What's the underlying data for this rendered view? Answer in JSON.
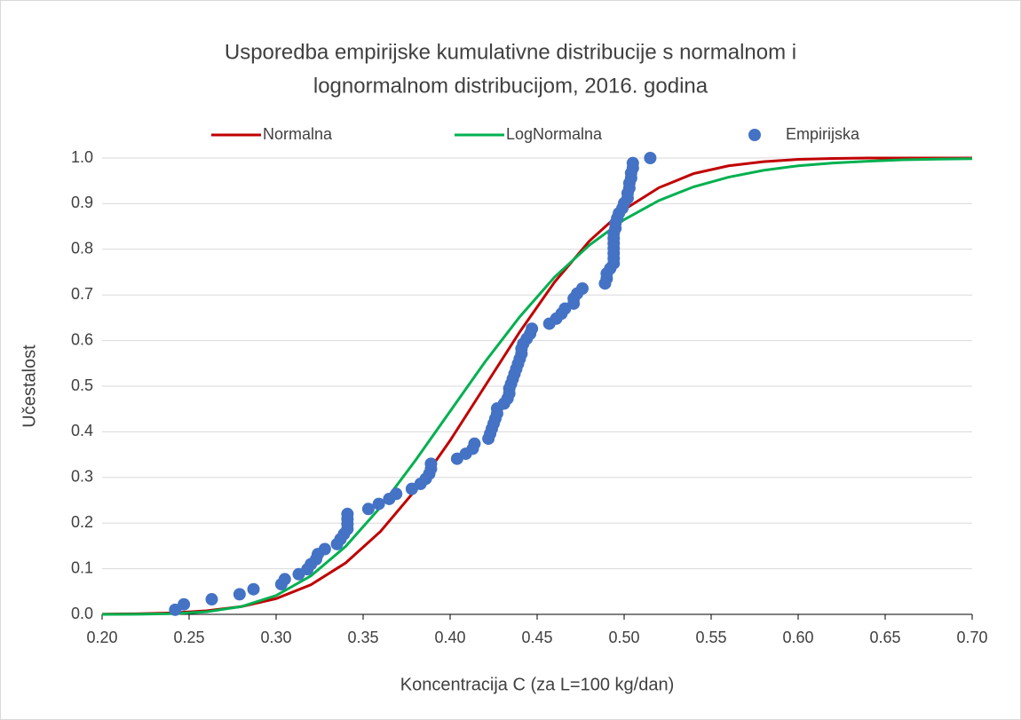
{
  "chart_data": {
    "type": "line",
    "title": [
      "Usporedba empirijske kumulativne distribucije s normalnom i",
      "lognormalnom distribucijom, 2016. godina"
    ],
    "x_label": "Koncentracija C (za L=100 kg/dan)",
    "y_label": "Učestalost",
    "xlim": [
      0.2,
      0.7
    ],
    "ylim": [
      0,
      1
    ],
    "xticks": [
      {
        "value": 0.2,
        "label": "0.20"
      },
      0.25,
      {
        "value": 0.3,
        "label": "0.30"
      },
      0.35,
      {
        "value": 0.4,
        "label": "0.40"
      },
      0.45,
      {
        "value": 0.5,
        "label": "0.50"
      },
      0.55,
      {
        "value": 0.6,
        "label": "0.60"
      },
      0.65,
      {
        "value": 0.7,
        "label": "0.70"
      }
    ],
    "yticks": [
      {
        "value": 0,
        "label": "0.0"
      },
      0.1,
      0.2,
      0.3,
      0.4,
      0.5,
      0.6,
      0.7,
      0.8,
      0.9,
      {
        "value": 1,
        "label": "1.0"
      }
    ],
    "grid": true,
    "legend": "top",
    "series": [
      {
        "name": "Normalna",
        "type": "line",
        "color": "#c00000",
        "x": [
          0.2,
          0.22,
          0.24,
          0.26,
          0.28,
          0.3,
          0.32,
          0.34,
          0.36,
          0.38,
          0.4,
          0.42,
          0.44,
          0.46,
          0.48,
          0.5,
          0.52,
          0.54,
          0.56,
          0.58,
          0.6,
          0.62,
          0.64,
          0.66,
          0.68,
          0.7
        ],
        "values": [
          0.0004,
          0.0012,
          0.0032,
          0.0077,
          0.017,
          0.0345,
          0.0649,
          0.1128,
          0.1817,
          0.2722,
          0.381,
          0.5,
          0.619,
          0.728,
          0.818,
          0.887,
          0.935,
          0.966,
          0.983,
          0.992,
          0.997,
          0.999,
          1.0,
          1.0,
          1.0,
          1.0
        ]
      },
      {
        "name": "LogNormalna",
        "type": "line",
        "color": "#00b050",
        "x": [
          0.2,
          0.22,
          0.24,
          0.26,
          0.28,
          0.3,
          0.32,
          0.34,
          0.36,
          0.38,
          0.4,
          0.42,
          0.44,
          0.46,
          0.48,
          0.5,
          0.52,
          0.54,
          0.56,
          0.58,
          0.6,
          0.62,
          0.64,
          0.66,
          0.68,
          0.7
        ],
        "values": [
          0.0,
          0.0003,
          0.0015,
          0.0057,
          0.017,
          0.0413,
          0.0843,
          0.149,
          0.235,
          0.337,
          0.445,
          0.553,
          0.652,
          0.739,
          0.809,
          0.865,
          0.907,
          0.937,
          0.958,
          0.973,
          0.983,
          0.989,
          0.993,
          0.996,
          0.9975,
          0.9985
        ]
      },
      {
        "name": "Empirijska",
        "type": "scatter",
        "color": "#4472c4",
        "x": [
          0.242,
          0.247,
          0.263,
          0.279,
          0.287,
          0.303,
          0.305,
          0.313,
          0.318,
          0.32,
          0.323,
          0.324,
          0.328,
          0.335,
          0.337,
          0.339,
          0.341,
          0.341,
          0.341,
          0.341,
          0.353,
          0.359,
          0.365,
          0.369,
          0.378,
          0.383,
          0.386,
          0.388,
          0.389,
          0.389,
          0.404,
          0.409,
          0.413,
          0.414,
          0.422,
          0.423,
          0.424,
          0.425,
          0.426,
          0.427,
          0.427,
          0.431,
          0.433,
          0.434,
          0.434,
          0.435,
          0.436,
          0.437,
          0.438,
          0.439,
          0.44,
          0.441,
          0.441,
          0.442,
          0.444,
          0.446,
          0.447,
          0.457,
          0.461,
          0.464,
          0.466,
          0.471,
          0.471,
          0.473,
          0.476,
          0.489,
          0.49,
          0.49,
          0.492,
          0.494,
          0.494,
          0.494,
          0.494,
          0.494,
          0.494,
          0.494,
          0.495,
          0.495,
          0.496,
          0.497,
          0.499,
          0.5,
          0.502,
          0.502,
          0.503,
          0.503,
          0.504,
          0.504,
          0.505,
          0.505,
          0.515
        ],
        "values": [
          0.01,
          0.022,
          0.033,
          0.044,
          0.055,
          0.066,
          0.077,
          0.088,
          0.099,
          0.11,
          0.121,
          0.132,
          0.143,
          0.154,
          0.165,
          0.176,
          0.187,
          0.198,
          0.209,
          0.22,
          0.231,
          0.242,
          0.253,
          0.264,
          0.275,
          0.286,
          0.297,
          0.308,
          0.319,
          0.33,
          0.341,
          0.352,
          0.363,
          0.374,
          0.385,
          0.396,
          0.407,
          0.418,
          0.429,
          0.44,
          0.451,
          0.462,
          0.473,
          0.484,
          0.495,
          0.505,
          0.516,
          0.527,
          0.538,
          0.549,
          0.56,
          0.571,
          0.582,
          0.593,
          0.604,
          0.615,
          0.626,
          0.637,
          0.648,
          0.659,
          0.67,
          0.681,
          0.692,
          0.703,
          0.714,
          0.725,
          0.736,
          0.747,
          0.758,
          0.769,
          0.78,
          0.791,
          0.802,
          0.813,
          0.824,
          0.835,
          0.846,
          0.857,
          0.868,
          0.879,
          0.89,
          0.901,
          0.912,
          0.923,
          0.934,
          0.945,
          0.956,
          0.967,
          0.978,
          0.989,
          1.0
        ]
      }
    ]
  }
}
